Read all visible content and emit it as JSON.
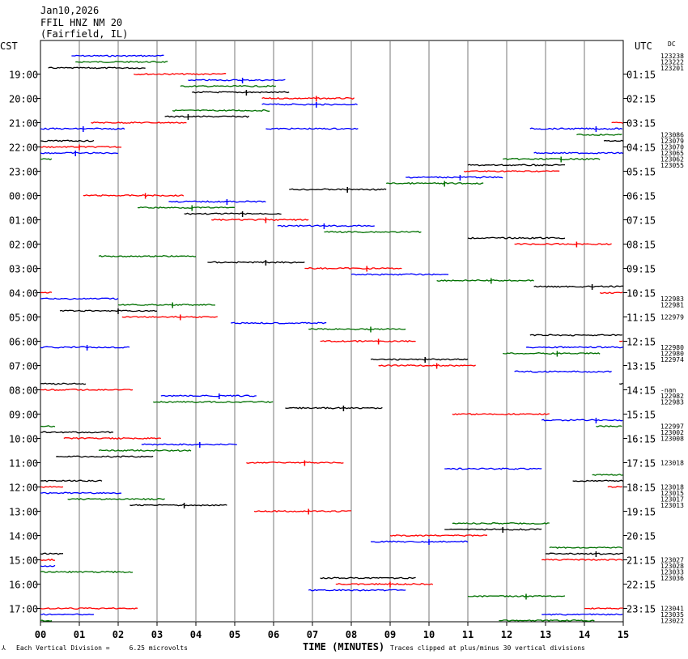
{
  "header": {
    "date": "Jan10,2026",
    "station": "FFIL HNZ NM 20",
    "location": "(Fairfield, IL)",
    "left_tz": "CST",
    "right_tz": "UTC",
    "dc_label": "DC"
  },
  "footer": {
    "scale_note": "Each Vertical Division =     6.25 microvolts",
    "xlabel": "TIME (MINUTES)",
    "clip_note": "Traces clipped at plus/minus 30 vertical divisions"
  },
  "chart_data": {
    "type": "line",
    "title": "FFIL HNZ NM 20",
    "xlabel": "TIME (MINUTES)",
    "xlim": [
      0,
      15
    ],
    "x_ticks": [
      "00",
      "01",
      "02",
      "03",
      "04",
      "05",
      "06",
      "07",
      "08",
      "09",
      "10",
      "11",
      "12",
      "13",
      "14",
      "15"
    ],
    "grid": "vertical lines at each minute",
    "colors": [
      "#000000",
      "#ff0000",
      "#0000ff",
      "#007000"
    ],
    "hour_labels": [
      {
        "row": 1,
        "cst": "19:00",
        "utc": "01:15"
      },
      {
        "row": 5,
        "cst": "20:00",
        "utc": "02:15"
      },
      {
        "row": 9,
        "cst": "21:00",
        "utc": "03:15"
      },
      {
        "row": 13,
        "cst": "22:00",
        "utc": "04:15"
      },
      {
        "row": 17,
        "cst": "23:00",
        "utc": "05:15"
      },
      {
        "row": 21,
        "cst": "00:00",
        "utc": "06:15"
      },
      {
        "row": 25,
        "cst": "01:00",
        "utc": "07:15"
      },
      {
        "row": 29,
        "cst": "02:00",
        "utc": "08:15"
      },
      {
        "row": 33,
        "cst": "03:00",
        "utc": "09:15"
      },
      {
        "row": 37,
        "cst": "04:00",
        "utc": "10:15"
      },
      {
        "row": 41,
        "cst": "05:00",
        "utc": "11:15"
      },
      {
        "row": 45,
        "cst": "06:00",
        "utc": "12:15"
      },
      {
        "row": 49,
        "cst": "07:00",
        "utc": "13:15"
      },
      {
        "row": 53,
        "cst": "08:00",
        "utc": "14:15"
      },
      {
        "row": 57,
        "cst": "09:00",
        "utc": "15:15"
      },
      {
        "row": 61,
        "cst": "10:00",
        "utc": "16:15"
      },
      {
        "row": 65,
        "cst": "11:00",
        "utc": "17:15"
      },
      {
        "row": 69,
        "cst": "12:00",
        "utc": "18:15"
      },
      {
        "row": 73,
        "cst": "13:00",
        "utc": "19:15"
      },
      {
        "row": 77,
        "cst": "14:00",
        "utc": "20:15"
      },
      {
        "row": 81,
        "cst": "15:00",
        "utc": "21:15"
      },
      {
        "row": 85,
        "cst": "16:00",
        "utc": "22:15"
      },
      {
        "row": 89,
        "cst": "17:00",
        "utc": "23:15"
      }
    ],
    "dc_values": [
      {
        "row": -2,
        "text": "123238"
      },
      {
        "row": -1,
        "text": "123222"
      },
      {
        "row": 0,
        "text": "123201"
      },
      {
        "row": 11,
        "text": "123086"
      },
      {
        "row": 12,
        "text": "123079"
      },
      {
        "row": 13,
        "text": "123070"
      },
      {
        "row": 14,
        "text": "123065"
      },
      {
        "row": 15,
        "text": "123062"
      },
      {
        "row": 16,
        "text": "123055"
      },
      {
        "row": 38,
        "text": "122983"
      },
      {
        "row": 39,
        "text": "122981"
      },
      {
        "row": 41,
        "text": "122979"
      },
      {
        "row": 46,
        "text": "122980"
      },
      {
        "row": 47,
        "text": "122980"
      },
      {
        "row": 48,
        "text": "122974"
      },
      {
        "row": 53,
        "text": "-nan"
      },
      {
        "row": 54,
        "text": "122982"
      },
      {
        "row": 55,
        "text": "122983"
      },
      {
        "row": 59,
        "text": "122997"
      },
      {
        "row": 60,
        "text": "123002"
      },
      {
        "row": 61,
        "text": "123008"
      },
      {
        "row": 65,
        "text": "123018"
      },
      {
        "row": 69,
        "text": "123018"
      },
      {
        "row": 70,
        "text": "123015"
      },
      {
        "row": 71,
        "text": "123017"
      },
      {
        "row": 72,
        "text": "123013"
      },
      {
        "row": 81,
        "text": "123027"
      },
      {
        "row": 82,
        "text": "123028"
      },
      {
        "row": 83,
        "text": "123033"
      },
      {
        "row": 84,
        "text": "123036"
      },
      {
        "row": 89,
        "text": "123041"
      },
      {
        "row": 90,
        "text": "123035"
      },
      {
        "row": 91,
        "text": "123022"
      }
    ],
    "segments": [
      {
        "row": -2,
        "c": 2,
        "x0": 0.8,
        "x1": 3.2,
        "spikes": []
      },
      {
        "row": -1,
        "c": 3,
        "x0": 0.9,
        "x1": 3.3,
        "spikes": []
      },
      {
        "row": 0,
        "c": 0,
        "x0": 0.2,
        "x1": 2.7,
        "spikes": []
      },
      {
        "row": 1,
        "c": 1,
        "x0": 2.4,
        "x1": 4.8,
        "spikes": []
      },
      {
        "row": 2,
        "c": 2,
        "x0": 3.8,
        "x1": 6.3,
        "spikes": [
          5.2
        ]
      },
      {
        "row": 3,
        "c": 3,
        "x0": 3.6,
        "x1": 6.1,
        "spikes": []
      },
      {
        "row": 4,
        "c": 0,
        "x0": 3.9,
        "x1": 6.4,
        "spikes": [
          5.3
        ]
      },
      {
        "row": 5,
        "c": 1,
        "x0": 5.7,
        "x1": 8.1,
        "spikes": [
          7.1
        ]
      },
      {
        "row": 6,
        "c": 2,
        "x0": 5.7,
        "x1": 8.2,
        "spikes": [
          7.1
        ]
      },
      {
        "row": 7,
        "c": 3,
        "x0": 3.4,
        "x1": 5.9,
        "spikes": []
      },
      {
        "row": 8,
        "c": 0,
        "x0": 3.2,
        "x1": 5.4,
        "spikes": [
          3.8
        ]
      },
      {
        "row": 9,
        "c": 1,
        "x0": 1.3,
        "x1": 3.8,
        "spikes": []
      },
      {
        "row": 9,
        "c": 1,
        "x0": 14.7,
        "x1": 15.0,
        "spikes": []
      },
      {
        "row": 10,
        "c": 2,
        "x0": 0.0,
        "x1": 2.2,
        "spikes": [
          1.1
        ]
      },
      {
        "row": 10,
        "c": 2,
        "x0": 5.8,
        "x1": 8.2,
        "spikes": []
      },
      {
        "row": 10,
        "c": 2,
        "x0": 12.6,
        "x1": 15.0,
        "spikes": [
          14.3
        ]
      },
      {
        "row": 11,
        "c": 3,
        "x0": 13.8,
        "x1": 15.0,
        "spikes": []
      },
      {
        "row": 12,
        "c": 0,
        "x0": 0.0,
        "x1": 1.4,
        "spikes": []
      },
      {
        "row": 12,
        "c": 0,
        "x0": 14.5,
        "x1": 15.0,
        "spikes": []
      },
      {
        "row": 13,
        "c": 1,
        "x0": 0.0,
        "x1": 2.1,
        "spikes": [
          1.0
        ]
      },
      {
        "row": 14,
        "c": 2,
        "x0": 0.0,
        "x1": 2.0,
        "spikes": [
          0.9
        ]
      },
      {
        "row": 14,
        "c": 2,
        "x0": 12.7,
        "x1": 15.0,
        "spikes": []
      },
      {
        "row": 15,
        "c": 3,
        "x0": 0.0,
        "x1": 0.3,
        "spikes": []
      },
      {
        "row": 15,
        "c": 3,
        "x0": 11.9,
        "x1": 14.4,
        "spikes": [
          13.4
        ]
      },
      {
        "row": 16,
        "c": 0,
        "x0": 11.0,
        "x1": 13.5,
        "spikes": []
      },
      {
        "row": 17,
        "c": 1,
        "x0": 10.9,
        "x1": 13.4,
        "spikes": []
      },
      {
        "row": 18,
        "c": 2,
        "x0": 9.4,
        "x1": 11.9,
        "spikes": [
          10.8
        ]
      },
      {
        "row": 19,
        "c": 3,
        "x0": 8.9,
        "x1": 11.4,
        "spikes": [
          10.4
        ]
      },
      {
        "row": 20,
        "c": 0,
        "x0": 6.4,
        "x1": 8.9,
        "spikes": [
          7.9
        ]
      },
      {
        "row": 21,
        "c": 1,
        "x0": 1.1,
        "x1": 3.7,
        "spikes": [
          2.7
        ]
      },
      {
        "row": 22,
        "c": 2,
        "x0": 3.3,
        "x1": 5.8,
        "spikes": [
          4.8
        ]
      },
      {
        "row": 23,
        "c": 3,
        "x0": 2.5,
        "x1": 5.0,
        "spikes": [
          3.9
        ]
      },
      {
        "row": 24,
        "c": 0,
        "x0": 3.7,
        "x1": 6.2,
        "spikes": [
          5.2
        ]
      },
      {
        "row": 25,
        "c": 1,
        "x0": 4.4,
        "x1": 6.9,
        "spikes": [
          5.8
        ]
      },
      {
        "row": 26,
        "c": 2,
        "x0": 6.1,
        "x1": 8.6,
        "spikes": [
          7.3
        ]
      },
      {
        "row": 27,
        "c": 3,
        "x0": 7.3,
        "x1": 9.8,
        "spikes": []
      },
      {
        "row": 28,
        "c": 0,
        "x0": 11.0,
        "x1": 13.5,
        "spikes": []
      },
      {
        "row": 29,
        "c": 1,
        "x0": 12.2,
        "x1": 14.7,
        "spikes": [
          13.8
        ]
      },
      {
        "row": 31,
        "c": 3,
        "x0": 1.5,
        "x1": 4.0,
        "spikes": []
      },
      {
        "row": 32,
        "c": 0,
        "x0": 4.3,
        "x1": 6.8,
        "spikes": [
          5.8
        ]
      },
      {
        "row": 33,
        "c": 1,
        "x0": 6.8,
        "x1": 9.3,
        "spikes": [
          8.4
        ]
      },
      {
        "row": 34,
        "c": 2,
        "x0": 8.0,
        "x1": 10.5,
        "spikes": []
      },
      {
        "row": 35,
        "c": 3,
        "x0": 10.2,
        "x1": 12.7,
        "spikes": [
          11.6
        ]
      },
      {
        "row": 36,
        "c": 0,
        "x0": 12.7,
        "x1": 15.0,
        "spikes": [
          14.2
        ]
      },
      {
        "row": 37,
        "c": 1,
        "x0": 0.0,
        "x1": 0.3,
        "spikes": []
      },
      {
        "row": 37,
        "c": 1,
        "x0": 14.4,
        "x1": 15.0,
        "spikes": []
      },
      {
        "row": 38,
        "c": 2,
        "x0": 0.0,
        "x1": 2.0,
        "spikes": []
      },
      {
        "row": 39,
        "c": 3,
        "x0": 2.0,
        "x1": 4.5,
        "spikes": [
          3.4
        ]
      },
      {
        "row": 40,
        "c": 0,
        "x0": 0.5,
        "x1": 3.0,
        "spikes": [
          2.0
        ]
      },
      {
        "row": 41,
        "c": 1,
        "x0": 2.1,
        "x1": 4.6,
        "spikes": [
          3.6
        ]
      },
      {
        "row": 42,
        "c": 2,
        "x0": 4.9,
        "x1": 7.4,
        "spikes": []
      },
      {
        "row": 43,
        "c": 3,
        "x0": 6.9,
        "x1": 9.4,
        "spikes": [
          8.5
        ]
      },
      {
        "row": 44,
        "c": 0,
        "x0": 12.6,
        "x1": 15.0,
        "spikes": []
      },
      {
        "row": 45,
        "c": 1,
        "x0": 7.2,
        "x1": 9.7,
        "spikes": [
          8.7
        ]
      },
      {
        "row": 45,
        "c": 1,
        "x0": 14.9,
        "x1": 15.0,
        "spikes": []
      },
      {
        "row": 46,
        "c": 2,
        "x0": 0.0,
        "x1": 2.3,
        "spikes": [
          1.2
        ]
      },
      {
        "row": 46,
        "c": 2,
        "x0": 12.5,
        "x1": 15.0,
        "spikes": []
      },
      {
        "row": 47,
        "c": 3,
        "x0": 11.9,
        "x1": 14.4,
        "spikes": [
          13.3
        ]
      },
      {
        "row": 48,
        "c": 0,
        "x0": 8.5,
        "x1": 11.0,
        "spikes": [
          9.9
        ]
      },
      {
        "row": 49,
        "c": 1,
        "x0": 8.7,
        "x1": 11.2,
        "spikes": [
          10.2
        ]
      },
      {
        "row": 50,
        "c": 2,
        "x0": 12.2,
        "x1": 14.7,
        "spikes": []
      },
      {
        "row": 52,
        "c": 0,
        "x0": 0.0,
        "x1": 1.2,
        "spikes": []
      },
      {
        "row": 52,
        "c": 0,
        "x0": 14.9,
        "x1": 15.0,
        "spikes": []
      },
      {
        "row": 53,
        "c": 1,
        "x0": 0.0,
        "x1": 2.4,
        "spikes": []
      },
      {
        "row": 54,
        "c": 2,
        "x0": 3.1,
        "x1": 5.6,
        "spikes": [
          4.6
        ]
      },
      {
        "row": 55,
        "c": 3,
        "x0": 2.9,
        "x1": 6.0,
        "spikes": []
      },
      {
        "row": 56,
        "c": 0,
        "x0": 6.3,
        "x1": 8.8,
        "spikes": [
          7.8
        ]
      },
      {
        "row": 57,
        "c": 1,
        "x0": 10.6,
        "x1": 13.1,
        "spikes": []
      },
      {
        "row": 58,
        "c": 2,
        "x0": 12.9,
        "x1": 15.0,
        "spikes": [
          14.3
        ]
      },
      {
        "row": 59,
        "c": 3,
        "x0": 0.0,
        "x1": 0.4,
        "spikes": []
      },
      {
        "row": 59,
        "c": 3,
        "x0": 14.3,
        "x1": 15.0,
        "spikes": []
      },
      {
        "row": 60,
        "c": 0,
        "x0": 0.0,
        "x1": 1.9,
        "spikes": []
      },
      {
        "row": 61,
        "c": 1,
        "x0": 0.6,
        "x1": 3.1,
        "spikes": []
      },
      {
        "row": 62,
        "c": 2,
        "x0": 2.6,
        "x1": 5.1,
        "spikes": [
          4.1
        ]
      },
      {
        "row": 63,
        "c": 3,
        "x0": 1.5,
        "x1": 3.9,
        "spikes": []
      },
      {
        "row": 64,
        "c": 0,
        "x0": 0.4,
        "x1": 2.9,
        "spikes": []
      },
      {
        "row": 65,
        "c": 1,
        "x0": 5.3,
        "x1": 7.8,
        "spikes": [
          6.8
        ]
      },
      {
        "row": 66,
        "c": 2,
        "x0": 10.4,
        "x1": 12.9,
        "spikes": []
      },
      {
        "row": 67,
        "c": 3,
        "x0": 14.2,
        "x1": 15.0,
        "spikes": []
      },
      {
        "row": 68,
        "c": 0,
        "x0": 0.0,
        "x1": 1.6,
        "spikes": []
      },
      {
        "row": 68,
        "c": 0,
        "x0": 13.7,
        "x1": 15.0,
        "spikes": []
      },
      {
        "row": 69,
        "c": 1,
        "x0": 0.0,
        "x1": 0.6,
        "spikes": []
      },
      {
        "row": 69,
        "c": 1,
        "x0": 14.6,
        "x1": 15.0,
        "spikes": []
      },
      {
        "row": 70,
        "c": 2,
        "x0": 0.0,
        "x1": 2.1,
        "spikes": []
      },
      {
        "row": 71,
        "c": 3,
        "x0": 0.7,
        "x1": 3.2,
        "spikes": []
      },
      {
        "row": 72,
        "c": 0,
        "x0": 2.3,
        "x1": 4.8,
        "spikes": [
          3.7
        ]
      },
      {
        "row": 73,
        "c": 1,
        "x0": 5.5,
        "x1": 8.0,
        "spikes": [
          6.9
        ]
      },
      {
        "row": 75,
        "c": 3,
        "x0": 10.6,
        "x1": 13.1,
        "spikes": []
      },
      {
        "row": 76,
        "c": 0,
        "x0": 10.4,
        "x1": 12.9,
        "spikes": [
          11.9
        ]
      },
      {
        "row": 77,
        "c": 1,
        "x0": 9.0,
        "x1": 11.5,
        "spikes": []
      },
      {
        "row": 78,
        "c": 2,
        "x0": 8.5,
        "x1": 11.0,
        "spikes": [
          10.0
        ]
      },
      {
        "row": 79,
        "c": 3,
        "x0": 13.1,
        "x1": 15.0,
        "spikes": []
      },
      {
        "row": 80,
        "c": 0,
        "x0": 0.0,
        "x1": 0.6,
        "spikes": []
      },
      {
        "row": 80,
        "c": 0,
        "x0": 13.0,
        "x1": 15.0,
        "spikes": [
          14.3
        ]
      },
      {
        "row": 81,
        "c": 1,
        "x0": 0.0,
        "x1": 0.4,
        "spikes": []
      },
      {
        "row": 81,
        "c": 1,
        "x0": 12.9,
        "x1": 15.0,
        "spikes": []
      },
      {
        "row": 82,
        "c": 2,
        "x0": 0.0,
        "x1": 0.4,
        "spikes": []
      },
      {
        "row": 83,
        "c": 3,
        "x0": 0.0,
        "x1": 2.4,
        "spikes": []
      },
      {
        "row": 84,
        "c": 0,
        "x0": 7.2,
        "x1": 9.7,
        "spikes": []
      },
      {
        "row": 85,
        "c": 1,
        "x0": 7.6,
        "x1": 10.1,
        "spikes": [
          9.0
        ]
      },
      {
        "row": 86,
        "c": 2,
        "x0": 6.9,
        "x1": 9.4,
        "spikes": []
      },
      {
        "row": 87,
        "c": 3,
        "x0": 11.0,
        "x1": 13.5,
        "spikes": [
          12.5
        ]
      },
      {
        "row": 89,
        "c": 1,
        "x0": 0.0,
        "x1": 2.5,
        "spikes": []
      },
      {
        "row": 89,
        "c": 1,
        "x0": 14.0,
        "x1": 15.0,
        "spikes": []
      },
      {
        "row": 90,
        "c": 2,
        "x0": 0.0,
        "x1": 1.4,
        "spikes": []
      },
      {
        "row": 90,
        "c": 2,
        "x0": 12.9,
        "x1": 15.0,
        "spikes": []
      },
      {
        "row": 91,
        "c": 3,
        "x0": 0.0,
        "x1": 0.3,
        "spikes": []
      },
      {
        "row": 91,
        "c": 3,
        "x0": 11.8,
        "x1": 14.3,
        "spikes": []
      }
    ]
  }
}
